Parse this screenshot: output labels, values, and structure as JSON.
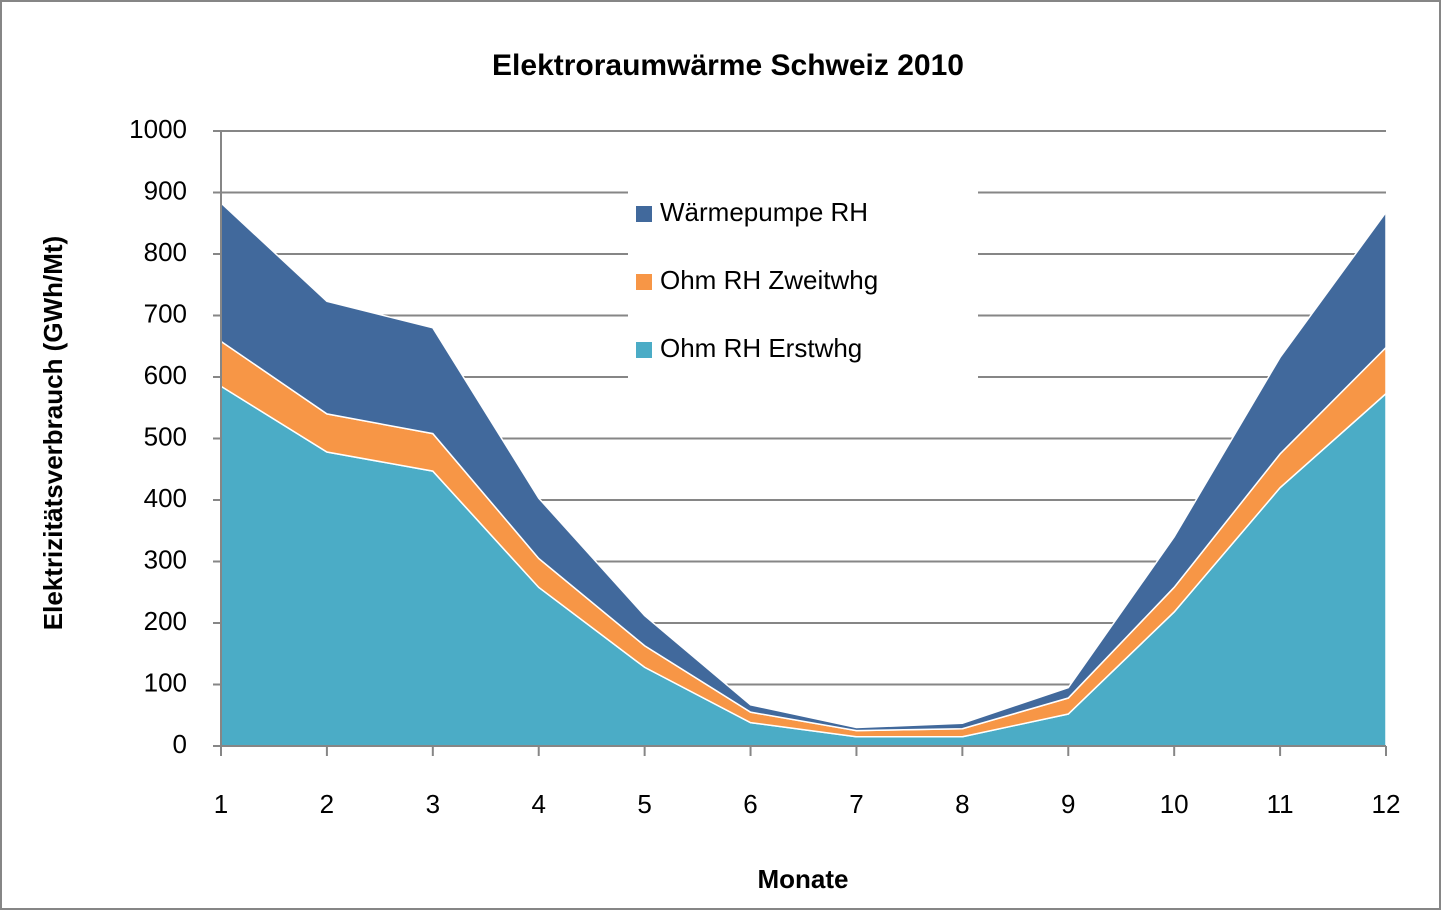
{
  "chart_data": {
    "type": "stacked_area",
    "title": "Elektroraumwärme  Schweiz 2010",
    "xlabel": "Monate",
    "ylabel": "Elektrizitätsverbrauch (GWh/Mt)",
    "x": [
      1,
      2,
      3,
      4,
      5,
      6,
      7,
      8,
      9,
      10,
      11,
      12
    ],
    "xlim": [
      1,
      12
    ],
    "xticks": [
      1,
      2,
      3,
      4,
      5,
      6,
      7,
      8,
      9,
      10,
      11,
      12
    ],
    "ylim": [
      0,
      1000
    ],
    "yticks": [
      0,
      100,
      200,
      300,
      400,
      500,
      600,
      700,
      800,
      900,
      1000
    ],
    "grid": true,
    "series": [
      {
        "name": "Ohm RH Erstwhg",
        "color": "#4bacc6",
        "values": [
          585,
          478,
          447,
          258,
          128,
          38,
          15,
          15,
          52,
          218,
          420,
          573
        ]
      },
      {
        "name": "Ohm RH Zweitwhg",
        "color": "#f79646",
        "values": [
          73,
          62,
          61,
          47,
          35,
          17,
          10,
          13,
          26,
          40,
          55,
          75
        ]
      },
      {
        "name": "Wärmepumpe RH",
        "color": "#41699c",
        "values": [
          225,
          183,
          172,
          98,
          49,
          12,
          5,
          9,
          17,
          82,
          157,
          220
        ]
      }
    ]
  }
}
